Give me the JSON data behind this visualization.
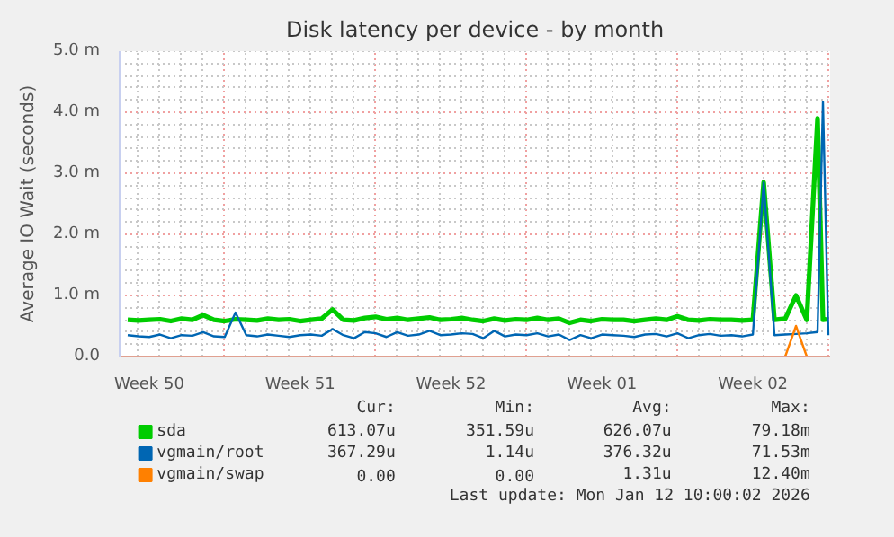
{
  "chart_data": {
    "type": "line",
    "title": "Disk latency per device - by month",
    "ylabel": "Average IO Wait (seconds)",
    "x": [
      "2025-12-10T12:00",
      "2025-12-11T00:00",
      "2025-12-11T12:00",
      "2025-12-12T00:00",
      "2025-12-12T12:00",
      "2025-12-13T00:00",
      "2025-12-13T12:00",
      "2025-12-14T00:00",
      "2025-12-14T12:00",
      "2025-12-15T00:00",
      "2025-12-15T12:00",
      "2025-12-16T00:00",
      "2025-12-16T12:00",
      "2025-12-17T00:00",
      "2025-12-17T12:00",
      "2025-12-18T00:00",
      "2025-12-18T12:00",
      "2025-12-19T00:00",
      "2025-12-19T12:00",
      "2025-12-20T00:00",
      "2025-12-20T12:00",
      "2025-12-21T00:00",
      "2025-12-21T12:00",
      "2025-12-22T00:00",
      "2025-12-22T12:00",
      "2025-12-23T00:00",
      "2025-12-23T12:00",
      "2025-12-24T00:00",
      "2025-12-24T12:00",
      "2025-12-25T00:00",
      "2025-12-25T12:00",
      "2025-12-26T00:00",
      "2025-12-26T12:00",
      "2025-12-27T00:00",
      "2025-12-27T12:00",
      "2025-12-28T00:00",
      "2025-12-28T12:00",
      "2025-12-29T00:00",
      "2025-12-29T12:00",
      "2025-12-30T00:00",
      "2025-12-30T12:00",
      "2025-12-31T00:00",
      "2025-12-31T12:00",
      "2026-01-01T00:00",
      "2026-01-01T12:00",
      "2026-01-02T00:00",
      "2026-01-02T12:00",
      "2026-01-03T00:00",
      "2026-01-03T12:00",
      "2026-01-04T00:00",
      "2026-01-04T12:00",
      "2026-01-05T00:00",
      "2026-01-05T12:00",
      "2026-01-06T00:00",
      "2026-01-06T12:00",
      "2026-01-07T00:00",
      "2026-01-07T12:00",
      "2026-01-08T00:00",
      "2026-01-08T12:00",
      "2026-01-09T00:00",
      "2026-01-09T12:00",
      "2026-01-10T00:00",
      "2026-01-10T12:00",
      "2026-01-11T00:00",
      "2026-01-11T12:00",
      "2026-01-11T18:00",
      "2026-01-12T00:00"
    ],
    "xlim": [
      "2025-12-10T03:00",
      "2026-01-12T02:00"
    ],
    "xticks": [
      {
        "value": "2025-12-11T12:00",
        "label": "Week 50"
      },
      {
        "value": "2025-12-15",
        "label": null
      },
      {
        "value": "2025-12-18T12:00",
        "label": "Week 51"
      },
      {
        "value": "2025-12-22",
        "label": null
      },
      {
        "value": "2025-12-25T12:00",
        "label": "Week 52"
      },
      {
        "value": "2025-12-29",
        "label": null
      },
      {
        "value": "2026-01-01T12:00",
        "label": "Week 01"
      },
      {
        "value": "2026-01-05",
        "label": null
      },
      {
        "value": "2026-01-08T12:00",
        "label": "Week 02"
      },
      {
        "value": "2026-01-12",
        "label": null
      }
    ],
    "ylim": [
      0,
      5
    ],
    "yticks": [
      {
        "value": 0,
        "label": "0.0"
      },
      {
        "value": 1,
        "label": "1.0 m"
      },
      {
        "value": 2,
        "label": "2.0 m"
      },
      {
        "value": 3,
        "label": "3.0 m"
      },
      {
        "value": 4,
        "label": "4.0 m"
      },
      {
        "value": 5,
        "label": "5.0 m"
      }
    ],
    "grid": true,
    "legend": "bottom",
    "marker": "none",
    "line_style": "solid",
    "series": [
      {
        "name": "sda",
        "color": "#00cc00",
        "values": [
          0.6,
          0.59,
          0.6,
          0.61,
          0.58,
          0.62,
          0.6,
          0.68,
          0.6,
          0.58,
          0.61,
          0.6,
          0.59,
          0.62,
          0.6,
          0.61,
          0.58,
          0.6,
          0.62,
          0.77,
          0.6,
          0.59,
          0.63,
          0.65,
          0.61,
          0.63,
          0.6,
          0.62,
          0.64,
          0.6,
          0.61,
          0.63,
          0.6,
          0.58,
          0.62,
          0.59,
          0.61,
          0.6,
          0.63,
          0.6,
          0.62,
          0.55,
          0.6,
          0.58,
          0.61,
          0.6,
          0.6,
          0.58,
          0.6,
          0.62,
          0.6,
          0.66,
          0.6,
          0.59,
          0.61,
          0.6,
          0.6,
          0.59,
          0.6,
          2.85,
          0.6,
          0.62,
          1.0,
          0.6,
          3.9,
          0.6,
          0.61
        ]
      },
      {
        "name": "vgmain/root",
        "color": "#0066b3",
        "values": [
          0.35,
          0.33,
          0.32,
          0.36,
          0.3,
          0.35,
          0.34,
          0.4,
          0.33,
          0.32,
          0.72,
          0.35,
          0.33,
          0.36,
          0.34,
          0.32,
          0.35,
          0.36,
          0.34,
          0.45,
          0.35,
          0.3,
          0.4,
          0.38,
          0.32,
          0.4,
          0.34,
          0.36,
          0.42,
          0.35,
          0.36,
          0.38,
          0.37,
          0.3,
          0.42,
          0.33,
          0.36,
          0.35,
          0.38,
          0.33,
          0.36,
          0.27,
          0.35,
          0.3,
          0.36,
          0.35,
          0.34,
          0.32,
          0.36,
          0.37,
          0.33,
          0.38,
          0.3,
          0.35,
          0.37,
          0.34,
          0.35,
          0.33,
          0.36,
          2.85,
          0.35,
          0.36,
          0.37,
          0.38,
          0.4,
          4.17,
          0.35
        ]
      },
      {
        "name": "vgmain/swap",
        "color": "#ff8000",
        "values": [
          null,
          null,
          null,
          null,
          null,
          null,
          null,
          null,
          null,
          null,
          null,
          null,
          null,
          null,
          null,
          null,
          null,
          null,
          null,
          null,
          null,
          null,
          null,
          null,
          null,
          null,
          null,
          null,
          null,
          null,
          null,
          null,
          null,
          null,
          null,
          null,
          null,
          null,
          null,
          null,
          null,
          null,
          null,
          null,
          null,
          null,
          null,
          null,
          null,
          null,
          null,
          null,
          null,
          null,
          null,
          null,
          null,
          null,
          null,
          null,
          null,
          0,
          0.5,
          0,
          null,
          null,
          null
        ]
      }
    ],
    "annotations": [
      "Cur:",
      "Min:",
      "Avg:",
      "Max:",
      "613.07u",
      "351.59u",
      "626.07u",
      "79.18m",
      "367.29u",
      "1.14u",
      "376.32u",
      "71.53m",
      "0.00",
      "0.00",
      "1.31u",
      "12.40m",
      "Last update: Mon Jan 12 10:00:02 2026"
    ]
  }
}
